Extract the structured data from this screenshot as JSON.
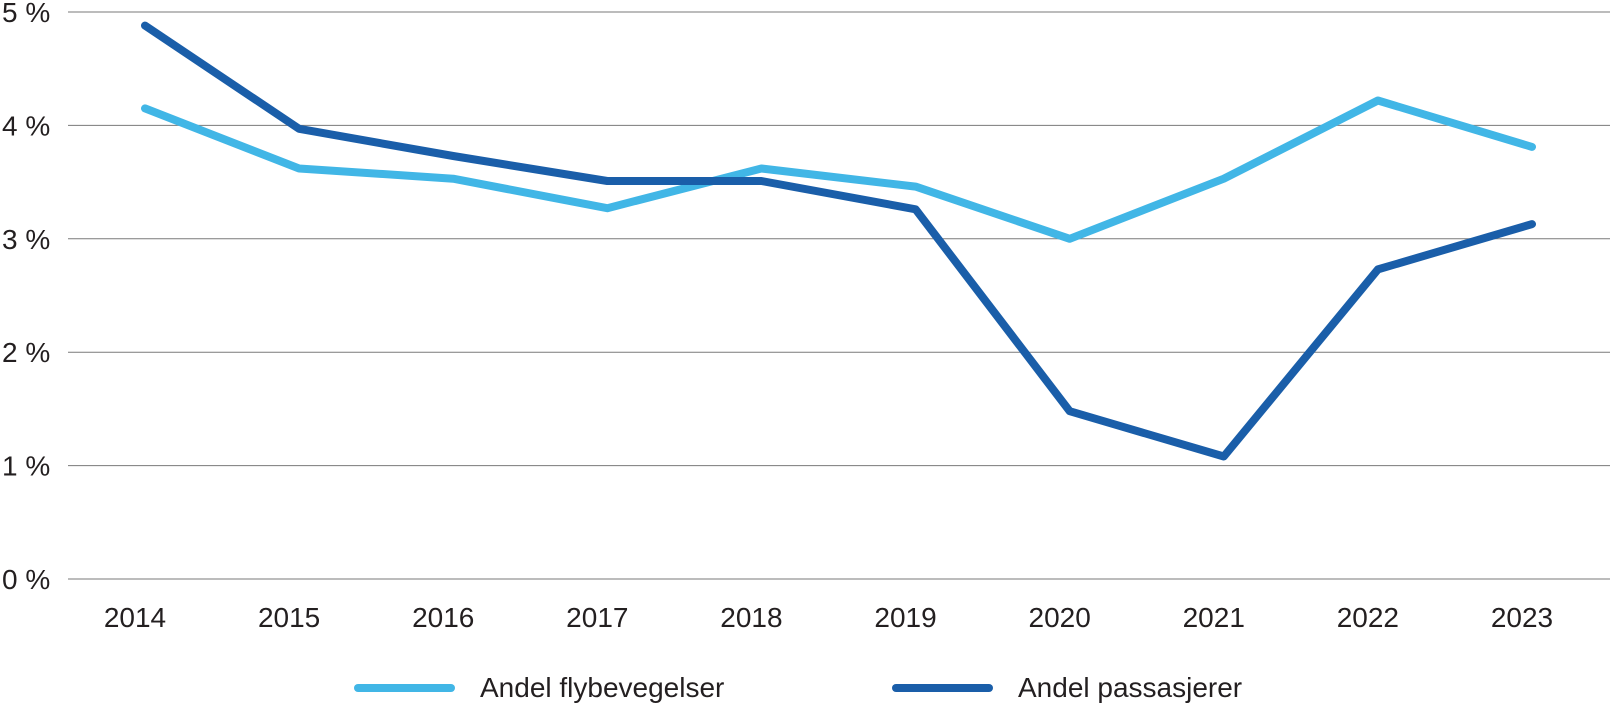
{
  "chart_data": {
    "type": "line",
    "title": "",
    "xlabel": "",
    "ylabel": "",
    "categories": [
      "2014",
      "2015",
      "2016",
      "2017",
      "2018",
      "2019",
      "2020",
      "2021",
      "2022",
      "2023"
    ],
    "series": [
      {
        "name": "Andel flybevegelser",
        "color": "#41B6E6",
        "values": [
          4.15,
          3.62,
          3.53,
          3.27,
          3.62,
          3.46,
          3.0,
          3.53,
          4.22,
          3.81
        ]
      },
      {
        "name": "Andel passasjerer",
        "color": "#1A5EA9",
        "values": [
          4.88,
          3.97,
          3.73,
          3.51,
          3.51,
          3.26,
          1.48,
          1.08,
          2.73,
          3.13
        ]
      }
    ],
    "y_ticks": [
      "0 %",
      "1 %",
      "2 %",
      "3 %",
      "4 %",
      "5 %"
    ],
    "ylim": [
      0,
      5
    ],
    "grid": "horizontal",
    "legend_position": "bottom"
  },
  "colors": {
    "grid": "#7A7A7A",
    "text": "#231F20",
    "background": "#FFFFFF"
  }
}
